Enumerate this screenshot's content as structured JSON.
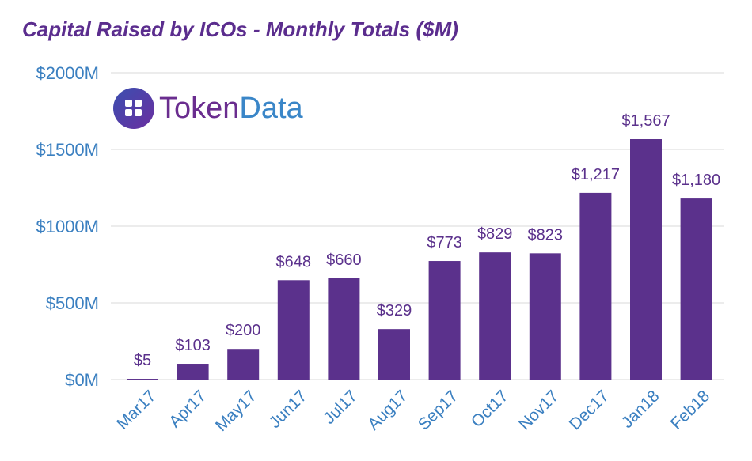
{
  "chart_data": {
    "type": "bar",
    "title": "Capital Raised by ICOs - Monthly Totals ($M)",
    "categories": [
      "Mar17",
      "Apr17",
      "May17",
      "Jun17",
      "Jul17",
      "Aug17",
      "Sep17",
      "Oct17",
      "Nov17",
      "Dec17",
      "Jan18",
      "Feb18"
    ],
    "values": [
      5,
      103,
      200,
      648,
      660,
      329,
      773,
      829,
      823,
      1217,
      1567,
      1180
    ],
    "data_labels": [
      "$5",
      "$103",
      "$200",
      "$648",
      "$660",
      "$329",
      "$773",
      "$829",
      "$823",
      "$1,217",
      "$1,567",
      "$1,180"
    ],
    "yticks": [
      0,
      500,
      1000,
      1500,
      2000
    ],
    "ytick_labels": [
      "$0M",
      "$500M",
      "$1000M",
      "$1500M",
      "$2000M"
    ],
    "ylim": [
      0,
      2000
    ],
    "xlabel": "",
    "ylabel": "",
    "grid": true,
    "colors": {
      "bar": "#5b318c",
      "label": "#5b318c",
      "axis_text": "#3a7fc0",
      "grid": "#d9d9d9"
    }
  },
  "logo": {
    "part1": "Token",
    "part2": "Data",
    "colors": {
      "part1": "#6a2d8f",
      "part2": "#3a86c8"
    }
  }
}
